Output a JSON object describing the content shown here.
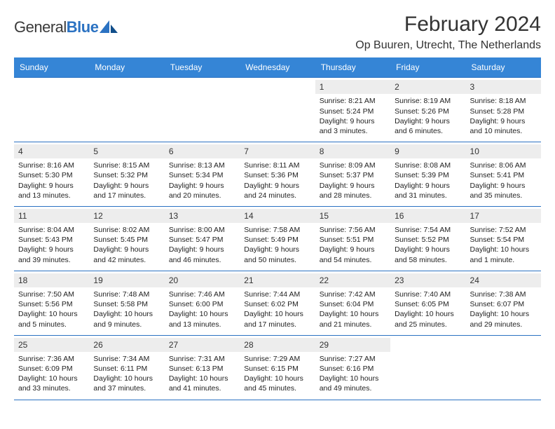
{
  "logo": {
    "word1": "General",
    "word2": "Blue"
  },
  "title": "February 2024",
  "location": "Op Buuren, Utrecht, The Netherlands",
  "colors": {
    "header_bg": "#3585d6",
    "header_text": "#ffffff",
    "row_border": "#2b72c2",
    "daynum_bg": "#ededed",
    "page_bg": "#ffffff"
  },
  "typography": {
    "title_fontsize": 30,
    "location_fontsize": 16,
    "dayheader_fontsize": 12,
    "cell_fontsize": 10.5
  },
  "layout": {
    "columns": 7,
    "rows": 5
  },
  "day_headers": [
    "Sunday",
    "Monday",
    "Tuesday",
    "Wednesday",
    "Thursday",
    "Friday",
    "Saturday"
  ],
  "weeks": [
    [
      {
        "n": "",
        "sr": "",
        "ss": "",
        "d1": "",
        "d2": "",
        "empty": true
      },
      {
        "n": "",
        "sr": "",
        "ss": "",
        "d1": "",
        "d2": "",
        "empty": true
      },
      {
        "n": "",
        "sr": "",
        "ss": "",
        "d1": "",
        "d2": "",
        "empty": true
      },
      {
        "n": "",
        "sr": "",
        "ss": "",
        "d1": "",
        "d2": "",
        "empty": true
      },
      {
        "n": "1",
        "sr": "Sunrise: 8:21 AM",
        "ss": "Sunset: 5:24 PM",
        "d1": "Daylight: 9 hours",
        "d2": "and 3 minutes."
      },
      {
        "n": "2",
        "sr": "Sunrise: 8:19 AM",
        "ss": "Sunset: 5:26 PM",
        "d1": "Daylight: 9 hours",
        "d2": "and 6 minutes."
      },
      {
        "n": "3",
        "sr": "Sunrise: 8:18 AM",
        "ss": "Sunset: 5:28 PM",
        "d1": "Daylight: 9 hours",
        "d2": "and 10 minutes."
      }
    ],
    [
      {
        "n": "4",
        "sr": "Sunrise: 8:16 AM",
        "ss": "Sunset: 5:30 PM",
        "d1": "Daylight: 9 hours",
        "d2": "and 13 minutes."
      },
      {
        "n": "5",
        "sr": "Sunrise: 8:15 AM",
        "ss": "Sunset: 5:32 PM",
        "d1": "Daylight: 9 hours",
        "d2": "and 17 minutes."
      },
      {
        "n": "6",
        "sr": "Sunrise: 8:13 AM",
        "ss": "Sunset: 5:34 PM",
        "d1": "Daylight: 9 hours",
        "d2": "and 20 minutes."
      },
      {
        "n": "7",
        "sr": "Sunrise: 8:11 AM",
        "ss": "Sunset: 5:36 PM",
        "d1": "Daylight: 9 hours",
        "d2": "and 24 minutes."
      },
      {
        "n": "8",
        "sr": "Sunrise: 8:09 AM",
        "ss": "Sunset: 5:37 PM",
        "d1": "Daylight: 9 hours",
        "d2": "and 28 minutes."
      },
      {
        "n": "9",
        "sr": "Sunrise: 8:08 AM",
        "ss": "Sunset: 5:39 PM",
        "d1": "Daylight: 9 hours",
        "d2": "and 31 minutes."
      },
      {
        "n": "10",
        "sr": "Sunrise: 8:06 AM",
        "ss": "Sunset: 5:41 PM",
        "d1": "Daylight: 9 hours",
        "d2": "and 35 minutes."
      }
    ],
    [
      {
        "n": "11",
        "sr": "Sunrise: 8:04 AM",
        "ss": "Sunset: 5:43 PM",
        "d1": "Daylight: 9 hours",
        "d2": "and 39 minutes."
      },
      {
        "n": "12",
        "sr": "Sunrise: 8:02 AM",
        "ss": "Sunset: 5:45 PM",
        "d1": "Daylight: 9 hours",
        "d2": "and 42 minutes."
      },
      {
        "n": "13",
        "sr": "Sunrise: 8:00 AM",
        "ss": "Sunset: 5:47 PM",
        "d1": "Daylight: 9 hours",
        "d2": "and 46 minutes."
      },
      {
        "n": "14",
        "sr": "Sunrise: 7:58 AM",
        "ss": "Sunset: 5:49 PM",
        "d1": "Daylight: 9 hours",
        "d2": "and 50 minutes."
      },
      {
        "n": "15",
        "sr": "Sunrise: 7:56 AM",
        "ss": "Sunset: 5:51 PM",
        "d1": "Daylight: 9 hours",
        "d2": "and 54 minutes."
      },
      {
        "n": "16",
        "sr": "Sunrise: 7:54 AM",
        "ss": "Sunset: 5:52 PM",
        "d1": "Daylight: 9 hours",
        "d2": "and 58 minutes."
      },
      {
        "n": "17",
        "sr": "Sunrise: 7:52 AM",
        "ss": "Sunset: 5:54 PM",
        "d1": "Daylight: 10 hours",
        "d2": "and 1 minute."
      }
    ],
    [
      {
        "n": "18",
        "sr": "Sunrise: 7:50 AM",
        "ss": "Sunset: 5:56 PM",
        "d1": "Daylight: 10 hours",
        "d2": "and 5 minutes."
      },
      {
        "n": "19",
        "sr": "Sunrise: 7:48 AM",
        "ss": "Sunset: 5:58 PM",
        "d1": "Daylight: 10 hours",
        "d2": "and 9 minutes."
      },
      {
        "n": "20",
        "sr": "Sunrise: 7:46 AM",
        "ss": "Sunset: 6:00 PM",
        "d1": "Daylight: 10 hours",
        "d2": "and 13 minutes."
      },
      {
        "n": "21",
        "sr": "Sunrise: 7:44 AM",
        "ss": "Sunset: 6:02 PM",
        "d1": "Daylight: 10 hours",
        "d2": "and 17 minutes."
      },
      {
        "n": "22",
        "sr": "Sunrise: 7:42 AM",
        "ss": "Sunset: 6:04 PM",
        "d1": "Daylight: 10 hours",
        "d2": "and 21 minutes."
      },
      {
        "n": "23",
        "sr": "Sunrise: 7:40 AM",
        "ss": "Sunset: 6:05 PM",
        "d1": "Daylight: 10 hours",
        "d2": "and 25 minutes."
      },
      {
        "n": "24",
        "sr": "Sunrise: 7:38 AM",
        "ss": "Sunset: 6:07 PM",
        "d1": "Daylight: 10 hours",
        "d2": "and 29 minutes."
      }
    ],
    [
      {
        "n": "25",
        "sr": "Sunrise: 7:36 AM",
        "ss": "Sunset: 6:09 PM",
        "d1": "Daylight: 10 hours",
        "d2": "and 33 minutes."
      },
      {
        "n": "26",
        "sr": "Sunrise: 7:34 AM",
        "ss": "Sunset: 6:11 PM",
        "d1": "Daylight: 10 hours",
        "d2": "and 37 minutes."
      },
      {
        "n": "27",
        "sr": "Sunrise: 7:31 AM",
        "ss": "Sunset: 6:13 PM",
        "d1": "Daylight: 10 hours",
        "d2": "and 41 minutes."
      },
      {
        "n": "28",
        "sr": "Sunrise: 7:29 AM",
        "ss": "Sunset: 6:15 PM",
        "d1": "Daylight: 10 hours",
        "d2": "and 45 minutes."
      },
      {
        "n": "29",
        "sr": "Sunrise: 7:27 AM",
        "ss": "Sunset: 6:16 PM",
        "d1": "Daylight: 10 hours",
        "d2": "and 49 minutes."
      },
      {
        "n": "",
        "sr": "",
        "ss": "",
        "d1": "",
        "d2": "",
        "empty": true
      },
      {
        "n": "",
        "sr": "",
        "ss": "",
        "d1": "",
        "d2": "",
        "empty": true
      }
    ]
  ]
}
